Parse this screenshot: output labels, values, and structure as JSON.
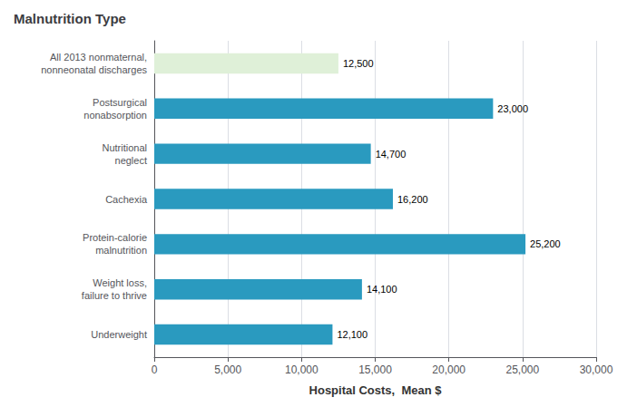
{
  "chart_data": {
    "type": "bar",
    "orientation": "horizontal",
    "title": "Malnutrition Type",
    "xlabel": "Hospital Costs,  Mean $",
    "categories": [
      "Underweight",
      "Weight loss,\nfailure to thrive",
      "Protein-calorie\nmalnutrition",
      "Cachexia",
      "Nutritional\nneglect",
      "Postsurgical\nnonabsorption",
      "All 2013 nonmaternal,\nnonneonatal discharges"
    ],
    "values": [
      12100,
      14100,
      25200,
      16200,
      14700,
      23000,
      12500
    ],
    "value_labels": [
      "12,100",
      "14,100",
      "25,200",
      "16,200",
      "14,700",
      "23,000",
      "12,500"
    ],
    "colors": [
      "#2a9abf",
      "#2a9abf",
      "#2a9abf",
      "#2a9abf",
      "#2a9abf",
      "#2a9abf",
      "#dff0d8"
    ],
    "xlim": [
      0,
      30000
    ],
    "xticks": [
      0,
      {
        "value": 5000,
        "label": "5,000"
      },
      {
        "value": 10000,
        "label": "10,000"
      },
      {
        "value": 15000,
        "label": "15,000"
      },
      {
        "value": 20000,
        "label": "20,000"
      },
      {
        "value": 25000,
        "label": "25,000"
      },
      {
        "value": 30000,
        "label": "30,000"
      }
    ],
    "grid": true,
    "data_labels": true
  }
}
